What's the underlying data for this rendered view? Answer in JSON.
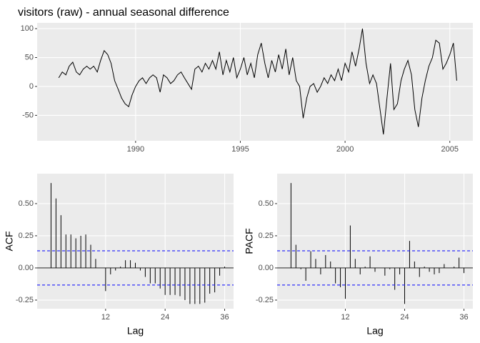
{
  "chart_data": [
    {
      "type": "line",
      "title": "visitors (raw) - annual seasonal difference",
      "color": "#000000",
      "grid": true,
      "x": [
        1986.33,
        1986.5,
        1986.67,
        1986.83,
        1987,
        1987.17,
        1987.33,
        1987.5,
        1987.67,
        1987.83,
        1988,
        1988.17,
        1988.33,
        1988.5,
        1988.67,
        1988.83,
        1989,
        1989.17,
        1989.33,
        1989.5,
        1989.67,
        1989.83,
        1990,
        1990.17,
        1990.33,
        1990.5,
        1990.67,
        1990.83,
        1991,
        1991.17,
        1991.33,
        1991.5,
        1991.67,
        1991.83,
        1992,
        1992.17,
        1992.33,
        1992.5,
        1992.67,
        1992.83,
        1993,
        1993.17,
        1993.33,
        1993.5,
        1993.67,
        1993.83,
        1994,
        1994.17,
        1994.33,
        1994.5,
        1994.67,
        1994.83,
        1995,
        1995.17,
        1995.33,
        1995.5,
        1995.67,
        1995.83,
        1996,
        1996.17,
        1996.33,
        1996.5,
        1996.67,
        1996.83,
        1997,
        1997.17,
        1997.33,
        1997.5,
        1997.67,
        1997.83,
        1998,
        1998.17,
        1998.33,
        1998.5,
        1998.67,
        1998.83,
        1999,
        1999.17,
        1999.33,
        1999.5,
        1999.67,
        1999.83,
        2000,
        2000.17,
        2000.33,
        2000.5,
        2000.67,
        2000.83,
        2001,
        2001.17,
        2001.33,
        2001.5,
        2001.67,
        2001.83,
        2002,
        2002.17,
        2002.33,
        2002.5,
        2002.67,
        2002.83,
        2003,
        2003.17,
        2003.33,
        2003.5,
        2003.67,
        2003.83,
        2004,
        2004.17,
        2004.33,
        2004.5,
        2004.67,
        2004.83,
        2005,
        2005.17,
        2005.33
      ],
      "values": [
        15,
        25,
        20,
        35,
        42,
        25,
        20,
        30,
        35,
        30,
        35,
        25,
        45,
        62,
        55,
        40,
        10,
        -5,
        -20,
        -30,
        -35,
        -15,
        0,
        10,
        15,
        5,
        15,
        20,
        15,
        -10,
        20,
        15,
        5,
        10,
        20,
        25,
        15,
        5,
        -5,
        30,
        35,
        25,
        40,
        30,
        45,
        30,
        60,
        20,
        45,
        25,
        50,
        15,
        30,
        50,
        20,
        40,
        15,
        55,
        75,
        40,
        15,
        45,
        25,
        55,
        30,
        65,
        20,
        50,
        10,
        0,
        -55,
        -20,
        0,
        5,
        -10,
        0,
        15,
        5,
        20,
        10,
        30,
        10,
        40,
        25,
        60,
        35,
        65,
        100,
        40,
        5,
        20,
        5,
        -40,
        -83,
        -20,
        40,
        -40,
        -30,
        10,
        30,
        45,
        20,
        -40,
        -70,
        -20,
        10,
        35,
        50,
        80,
        75,
        30,
        40,
        55,
        75,
        10
      ],
      "xlim": [
        1985.3,
        2006.1
      ],
      "ylim": [
        -94,
        110
      ],
      "xticks": [
        1990,
        1995,
        2000,
        2005
      ],
      "yticks": [
        100,
        50,
        0,
        -50
      ]
    },
    {
      "type": "acf",
      "x_label": "Lag",
      "y_label": "ACF",
      "color": "#000000",
      "confidence_limit": 0.133,
      "confidence_color": "#0000ff",
      "grid": true,
      "x": [
        1,
        2,
        3,
        4,
        5,
        6,
        7,
        8,
        9,
        10,
        11,
        12,
        13,
        14,
        15,
        16,
        17,
        18,
        19,
        20,
        21,
        22,
        23,
        24,
        25,
        26,
        27,
        28,
        29,
        30,
        31,
        32,
        33,
        34,
        35,
        36
      ],
      "values": [
        0.66,
        0.54,
        0.41,
        0.26,
        0.26,
        0.23,
        0.25,
        0.26,
        0.18,
        0.07,
        0.0,
        -0.18,
        -0.05,
        -0.02,
        0.01,
        0.06,
        0.06,
        0.04,
        -0.02,
        -0.07,
        -0.12,
        -0.12,
        -0.16,
        -0.21,
        -0.21,
        -0.21,
        -0.22,
        -0.25,
        -0.28,
        -0.28,
        -0.28,
        -0.27,
        -0.2,
        -0.19,
        -0.06,
        0.01
      ],
      "xlim": [
        -1.8,
        37.8
      ],
      "ylim": [
        -0.317,
        0.733
      ],
      "xticks": [
        12,
        24,
        36
      ],
      "yticks": [
        {
          "value": 0.5,
          "label": "0.50"
        },
        {
          "value": 0.25,
          "label": "0.25"
        },
        {
          "value": 0,
          "label": "0.00"
        },
        {
          "value": -0.25,
          "label": "-0.25"
        }
      ]
    },
    {
      "type": "acf",
      "x_label": "Lag",
      "y_label": "PACF",
      "color": "#000000",
      "confidence_limit": 0.133,
      "confidence_color": "#0000ff",
      "grid": true,
      "x": [
        1,
        2,
        3,
        4,
        5,
        6,
        7,
        8,
        9,
        10,
        11,
        12,
        13,
        14,
        15,
        16,
        17,
        18,
        19,
        20,
        21,
        22,
        23,
        24,
        25,
        26,
        27,
        28,
        29,
        30,
        31,
        32,
        33,
        34,
        35,
        36
      ],
      "values": [
        0.66,
        0.18,
        -0.01,
        -0.1,
        0.13,
        0.07,
        -0.05,
        0.1,
        0.05,
        -0.12,
        -0.15,
        -0.24,
        0.33,
        0.07,
        -0.05,
        0.01,
        0.09,
        -0.03,
        0.0,
        -0.06,
        -0.01,
        -0.17,
        -0.05,
        -0.28,
        0.21,
        0.05,
        -0.07,
        0.01,
        -0.03,
        -0.05,
        -0.04,
        0.03,
        0.0,
        0.01,
        0.08,
        -0.04
      ],
      "xlim": [
        -1.8,
        37.8
      ],
      "ylim": [
        -0.317,
        0.733
      ],
      "xticks": [
        12,
        24,
        36
      ],
      "yticks": [
        {
          "value": 0.5,
          "label": "0.50"
        },
        {
          "value": 0.25,
          "label": "0.25"
        },
        {
          "value": 0,
          "label": "0.00"
        },
        {
          "value": -0.25,
          "label": "-0.25"
        }
      ]
    }
  ]
}
